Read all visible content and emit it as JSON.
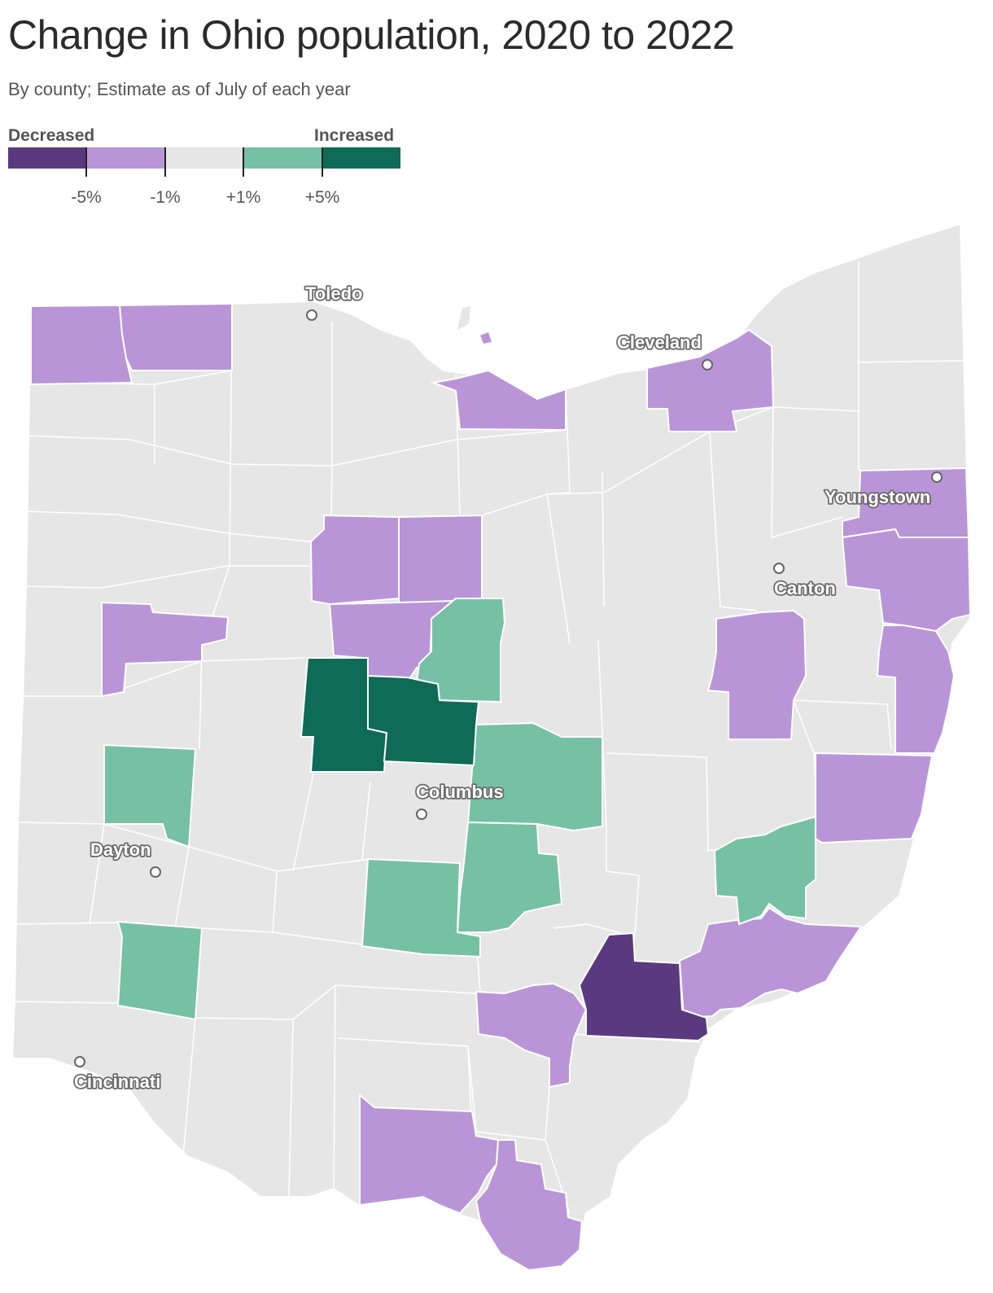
{
  "title": "Change in Ohio population, 2020 to 2022",
  "subtitle": "By county; Estimate as of July of each year",
  "legend": {
    "left_label": "Decreased",
    "right_label": "Increased",
    "bins": [
      {
        "range": "below -5%",
        "color": "#5a3a7e"
      },
      {
        "range": "-5% to -1%",
        "color": "#b995d8"
      },
      {
        "range": "-1% to +1%",
        "color": "#e6e6e6"
      },
      {
        "range": "+1% to +5%",
        "color": "#76c0a6"
      },
      {
        "range": "above +5%",
        "color": "#0e6b57"
      }
    ],
    "ticks": [
      "-5%",
      "-1%",
      "+1%",
      "+5%"
    ]
  },
  "colors": {
    "strong_decrease": "#5a3a7e",
    "decrease": "#b995d8",
    "neutral": "#e6e6e6",
    "increase": "#76c0a6",
    "strong_increase": "#0e6b57",
    "county_border": "#ffffff"
  },
  "cities": [
    {
      "name": "Toledo"
    },
    {
      "name": "Cleveland"
    },
    {
      "name": "Youngstown"
    },
    {
      "name": "Canton"
    },
    {
      "name": "Columbus"
    },
    {
      "name": "Dayton"
    },
    {
      "name": "Cincinnati"
    }
  ]
}
